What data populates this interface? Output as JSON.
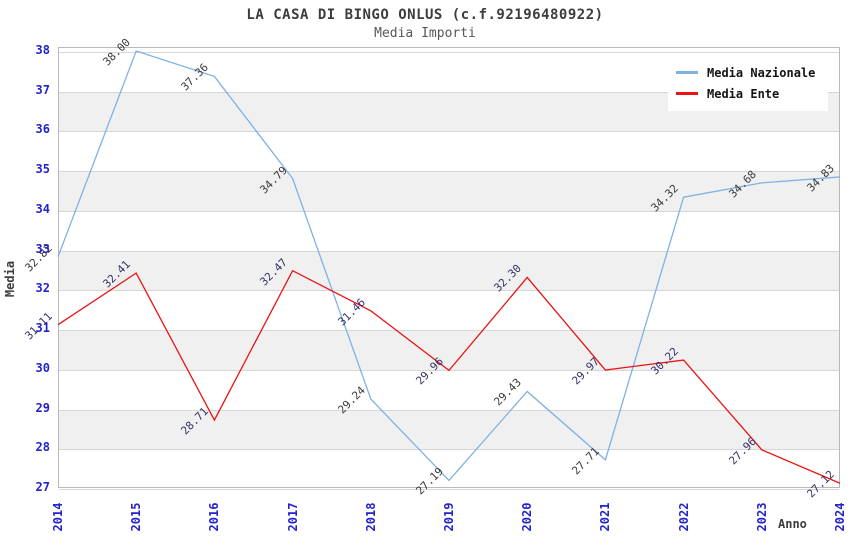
{
  "title": "LA CASA DI BINGO ONLUS (c.f.92196480922)",
  "subtitle": "Media Importi",
  "axis": {
    "y_title": "Media",
    "x_title": "Anno"
  },
  "legend": {
    "items": [
      {
        "name": "media-nazionale",
        "label": "Media Nazionale",
        "color": "#7eb1e6"
      },
      {
        "name": "media-ente",
        "label": "Media Ente",
        "color": "#ea1414"
      }
    ]
  },
  "colors": {
    "nazionale_line": "#7eb1e6",
    "ente_line": "#ea1414",
    "nazionale_label_text": "#3a3a3a",
    "ente_label_text": "#333366",
    "axis_tick_text": "#2323cc",
    "gridline": "#d6d6d6",
    "band": "#f0f0f0",
    "title_text": "#3d3d3d"
  },
  "chart_data": {
    "type": "line",
    "title": "LA CASA DI BINGO ONLUS (c.f.92196480922)",
    "subtitle": "Media Importi",
    "xlabel": "Anno",
    "ylabel": "Media",
    "x": [
      2014,
      2015,
      2016,
      2017,
      2018,
      2019,
      2020,
      2021,
      2022,
      2023,
      2024
    ],
    "series": [
      {
        "name": "Media Nazionale",
        "color": "#7eb1e6",
        "values": [
          32.82,
          38.0,
          37.36,
          34.79,
          29.24,
          27.19,
          29.43,
          27.71,
          34.32,
          34.68,
          34.83
        ]
      },
      {
        "name": "Media Ente",
        "color": "#ea1414",
        "values": [
          31.11,
          32.41,
          28.71,
          32.47,
          31.46,
          29.96,
          32.3,
          29.97,
          30.22,
          27.96,
          27.12
        ]
      }
    ],
    "ylim": [
      27,
      38
    ],
    "yticks": [
      27,
      28,
      29,
      30,
      31,
      32,
      33,
      34,
      35,
      36,
      37,
      38
    ],
    "grid": true,
    "alternating_bands": true,
    "legend_position": "top-right",
    "data_label_format": "2-decimals",
    "data_label_rotation": -45
  }
}
